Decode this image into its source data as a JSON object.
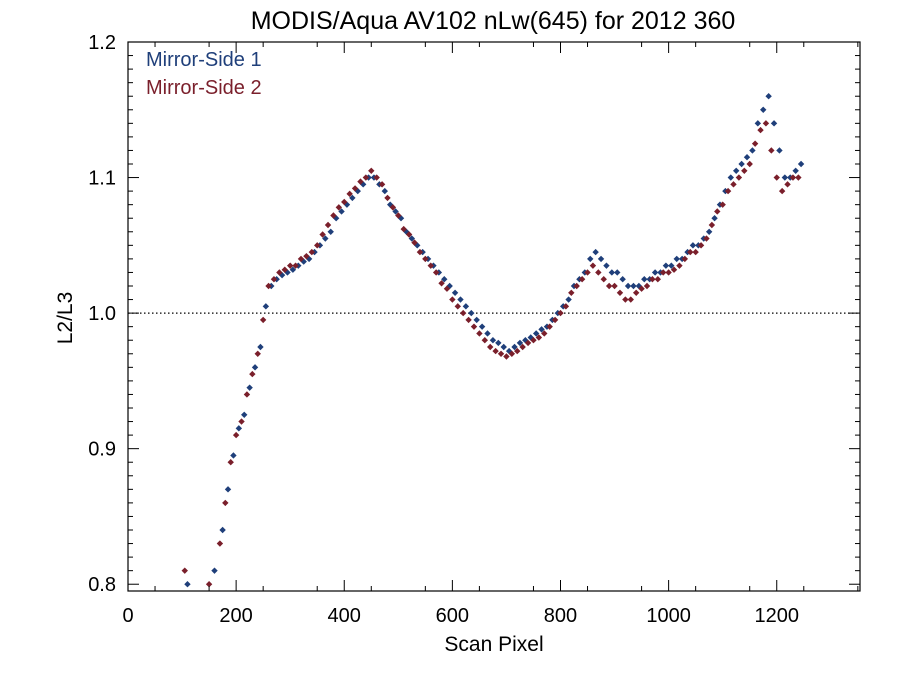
{
  "chart_data": {
    "type": "scatter",
    "title": "MODIS/Aqua AV102 nLw(645) for 2012 360",
    "xlabel": "Scan Pixel",
    "ylabel": "L2/L3",
    "xlim": [
      0,
      1354
    ],
    "ylim": [
      0.795,
      1.2
    ],
    "xticks": [
      0,
      200,
      400,
      600,
      800,
      1000,
      1200
    ],
    "xtick_labels": [
      "0",
      "200",
      "400",
      "600",
      "800",
      "1000",
      "1200"
    ],
    "yticks": [
      0.8,
      0.9,
      1.0,
      1.1,
      1.2
    ],
    "ytick_labels": [
      "0.8",
      "0.9",
      "1.0",
      "1.1",
      "1.2"
    ],
    "reference_line": {
      "y": 1.0,
      "style": "dotted"
    },
    "legend": {
      "placement": "top-left"
    },
    "grid": false,
    "series": [
      {
        "name": "Mirror-Side 1",
        "color": "#1f3f7a",
        "marker": "diamond",
        "x": [
          110,
          160,
          175,
          185,
          195,
          205,
          215,
          225,
          235,
          245,
          255,
          265,
          275,
          285,
          295,
          305,
          315,
          325,
          335,
          345,
          355,
          365,
          375,
          385,
          395,
          405,
          415,
          425,
          435,
          445,
          455,
          465,
          475,
          485,
          495,
          505,
          515,
          525,
          535,
          545,
          555,
          565,
          575,
          585,
          595,
          605,
          615,
          625,
          635,
          645,
          655,
          665,
          675,
          685,
          695,
          705,
          715,
          725,
          735,
          745,
          755,
          765,
          775,
          785,
          795,
          805,
          815,
          825,
          835,
          845,
          855,
          865,
          875,
          885,
          895,
          905,
          915,
          925,
          935,
          945,
          955,
          965,
          975,
          985,
          995,
          1005,
          1015,
          1025,
          1035,
          1045,
          1055,
          1065,
          1075,
          1085,
          1095,
          1105,
          1115,
          1125,
          1135,
          1145,
          1155,
          1165,
          1175,
          1185,
          1195,
          1205,
          1215,
          1225,
          1235,
          1245
        ],
        "y": [
          0.8,
          0.81,
          0.84,
          0.87,
          0.895,
          0.915,
          0.925,
          0.945,
          0.96,
          0.975,
          1.005,
          1.02,
          1.025,
          1.028,
          1.03,
          1.032,
          1.035,
          1.038,
          1.04,
          1.045,
          1.05,
          1.055,
          1.06,
          1.07,
          1.075,
          1.08,
          1.085,
          1.09,
          1.095,
          1.1,
          1.1,
          1.095,
          1.09,
          1.08,
          1.075,
          1.07,
          1.06,
          1.055,
          1.05,
          1.045,
          1.04,
          1.035,
          1.03,
          1.025,
          1.02,
          1.015,
          1.01,
          1.005,
          1.0,
          0.995,
          0.99,
          0.985,
          0.98,
          0.978,
          0.975,
          0.972,
          0.975,
          0.978,
          0.98,
          0.982,
          0.985,
          0.988,
          0.99,
          0.995,
          1.0,
          1.005,
          1.01,
          1.02,
          1.025,
          1.03,
          1.04,
          1.045,
          1.04,
          1.035,
          1.03,
          1.03,
          1.025,
          1.02,
          1.02,
          1.02,
          1.025,
          1.025,
          1.03,
          1.03,
          1.035,
          1.035,
          1.04,
          1.04,
          1.045,
          1.05,
          1.05,
          1.055,
          1.06,
          1.07,
          1.08,
          1.09,
          1.1,
          1.105,
          1.11,
          1.115,
          1.12,
          1.14,
          1.15,
          1.16,
          1.14,
          1.12,
          1.1,
          1.1,
          1.105,
          1.11
        ]
      },
      {
        "name": "Mirror-Side 2",
        "color": "#7a1f2b",
        "marker": "diamond",
        "x": [
          105,
          150,
          170,
          180,
          190,
          200,
          210,
          220,
          230,
          240,
          250,
          260,
          270,
          280,
          290,
          300,
          310,
          320,
          330,
          340,
          350,
          360,
          370,
          380,
          390,
          400,
          410,
          420,
          430,
          440,
          450,
          460,
          470,
          480,
          490,
          500,
          510,
          520,
          530,
          540,
          550,
          560,
          570,
          580,
          590,
          600,
          610,
          620,
          630,
          640,
          650,
          660,
          670,
          680,
          690,
          700,
          710,
          720,
          730,
          740,
          750,
          760,
          770,
          780,
          790,
          800,
          810,
          820,
          830,
          840,
          850,
          860,
          870,
          880,
          890,
          900,
          910,
          920,
          930,
          940,
          950,
          960,
          970,
          980,
          990,
          1000,
          1010,
          1020,
          1030,
          1040,
          1050,
          1060,
          1070,
          1080,
          1090,
          1100,
          1110,
          1120,
          1130,
          1140,
          1150,
          1160,
          1170,
          1180,
          1190,
          1200,
          1210,
          1220,
          1230,
          1240
        ],
        "y": [
          0.81,
          0.8,
          0.83,
          0.86,
          0.89,
          0.91,
          0.92,
          0.94,
          0.955,
          0.97,
          0.995,
          1.02,
          1.025,
          1.03,
          1.032,
          1.035,
          1.035,
          1.04,
          1.042,
          1.045,
          1.05,
          1.058,
          1.065,
          1.072,
          1.078,
          1.082,
          1.088,
          1.092,
          1.097,
          1.1,
          1.105,
          1.1,
          1.095,
          1.085,
          1.078,
          1.072,
          1.062,
          1.058,
          1.052,
          1.045,
          1.04,
          1.035,
          1.03,
          1.022,
          1.018,
          1.01,
          1.005,
          1.0,
          0.995,
          0.99,
          0.985,
          0.98,
          0.975,
          0.972,
          0.97,
          0.968,
          0.97,
          0.972,
          0.975,
          0.978,
          0.98,
          0.982,
          0.985,
          0.99,
          0.995,
          1.0,
          1.005,
          1.015,
          1.02,
          1.025,
          1.03,
          1.035,
          1.03,
          1.025,
          1.02,
          1.02,
          1.015,
          1.01,
          1.01,
          1.015,
          1.018,
          1.02,
          1.025,
          1.025,
          1.03,
          1.03,
          1.032,
          1.035,
          1.04,
          1.045,
          1.045,
          1.05,
          1.055,
          1.065,
          1.075,
          1.08,
          1.09,
          1.095,
          1.1,
          1.105,
          1.11,
          1.125,
          1.135,
          1.14,
          1.12,
          1.1,
          1.09,
          1.095,
          1.1,
          1.1
        ]
      }
    ]
  }
}
